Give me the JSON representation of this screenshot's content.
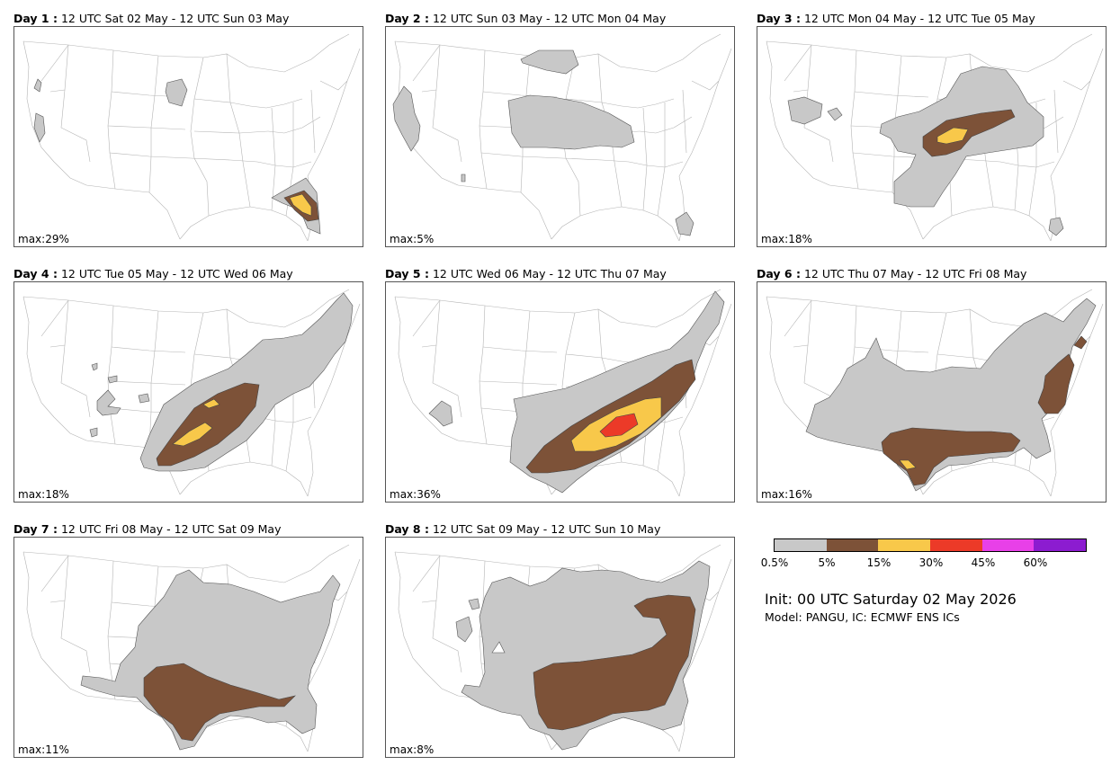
{
  "panels": [
    {
      "day_label": "Day 1 :",
      "period": "12 UTC Sat 02 May - 12 UTC Sun 03 May",
      "max_label": "max:29%"
    },
    {
      "day_label": "Day 2 :",
      "period": "12 UTC Sun 03 May - 12 UTC Mon 04 May",
      "max_label": "max:5%"
    },
    {
      "day_label": "Day 3 :",
      "period": "12 UTC Mon 04 May - 12 UTC Tue 05 May",
      "max_label": "max:18%"
    },
    {
      "day_label": "Day 4 :",
      "period": "12 UTC Tue 05 May - 12 UTC Wed 06 May",
      "max_label": "max:18%"
    },
    {
      "day_label": "Day 5 :",
      "period": "12 UTC Wed 06 May - 12 UTC Thu 07 May",
      "max_label": "max:36%"
    },
    {
      "day_label": "Day 6 :",
      "period": "12 UTC Thu 07 May - 12 UTC Fri 08 May",
      "max_label": "max:16%"
    },
    {
      "day_label": "Day 7 :",
      "period": "12 UTC Fri 08 May - 12 UTC Sat 09 May",
      "max_label": "max:11%"
    },
    {
      "day_label": "Day 8 :",
      "period": "12 UTC Sat 09 May - 12 UTC Sun 10 May",
      "max_label": "max:8%"
    }
  ],
  "legend": {
    "colors": [
      "#c8c8c8",
      "#7d5238",
      "#f8c84a",
      "#ec3a28",
      "#e840e8",
      "#8c1cd0"
    ],
    "ticks": [
      "0.5%",
      "5%",
      "15%",
      "30%",
      "45%",
      "60%"
    ]
  },
  "init_text": "Init: 00 UTC Saturday 02 May 2026",
  "model_text": "Model: PANGU, IC: ECMWF ENS ICs"
}
